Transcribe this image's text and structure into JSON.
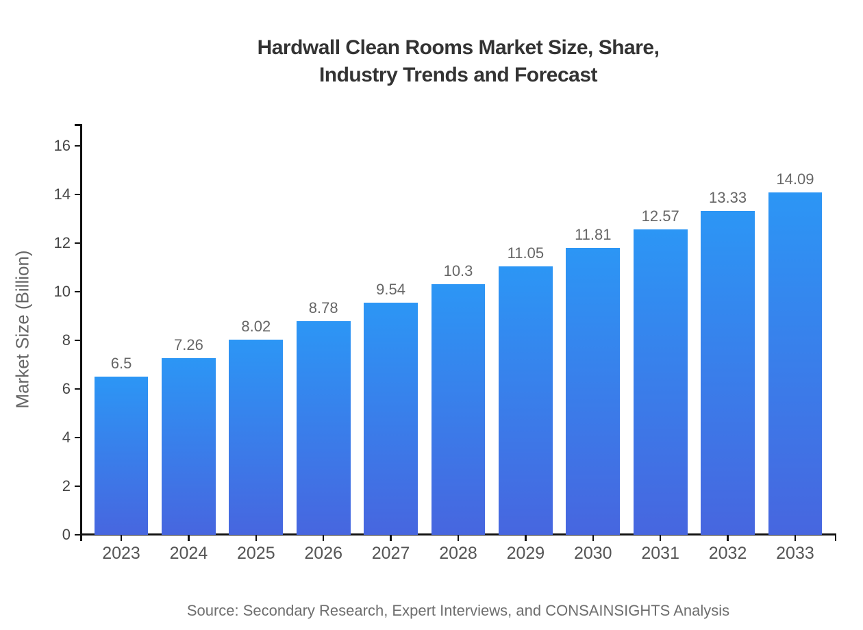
{
  "header": {
    "title": "Hardwall Clean Rooms Market Size, Share,\nIndustry Trends and Forecast"
  },
  "footer": {
    "source": "Source: Secondary Research, Expert Interviews, and CONSAINSIGHTS Analysis"
  },
  "chart_data": {
    "type": "bar",
    "title": "Hardwall Clean Rooms Market Size, Share, Industry Trends and Forecast",
    "categories": [
      "2023",
      "2024",
      "2025",
      "2026",
      "2027",
      "2028",
      "2029",
      "2030",
      "2031",
      "2032",
      "2033"
    ],
    "values": [
      6.5,
      7.26,
      8.02,
      8.78,
      9.54,
      10.3,
      11.05,
      11.81,
      12.57,
      13.33,
      14.09
    ],
    "bar_labels": [
      "6.5",
      "7.26",
      "8.02",
      "8.78",
      "9.54",
      "10.3",
      "11.05",
      "11.81",
      "12.57",
      "13.33",
      "14.09"
    ],
    "xlabel": "",
    "ylabel": "Market Size (Billion)",
    "yticks": [
      0,
      2,
      4,
      6,
      8,
      10,
      12,
      14,
      16
    ],
    "ylim": [
      0,
      16.9
    ],
    "grid": false,
    "legend": false,
    "bar_gradient": {
      "top": "#2C96F5",
      "bottom": "#4766DF"
    },
    "axis_color": "#111111",
    "value_label_color": "#666666",
    "tick_label_color": "#555555",
    "title_color": "#333333",
    "source": "Source: Secondary Research, Expert Interviews, and CONSAINSIGHTS Analysis"
  }
}
